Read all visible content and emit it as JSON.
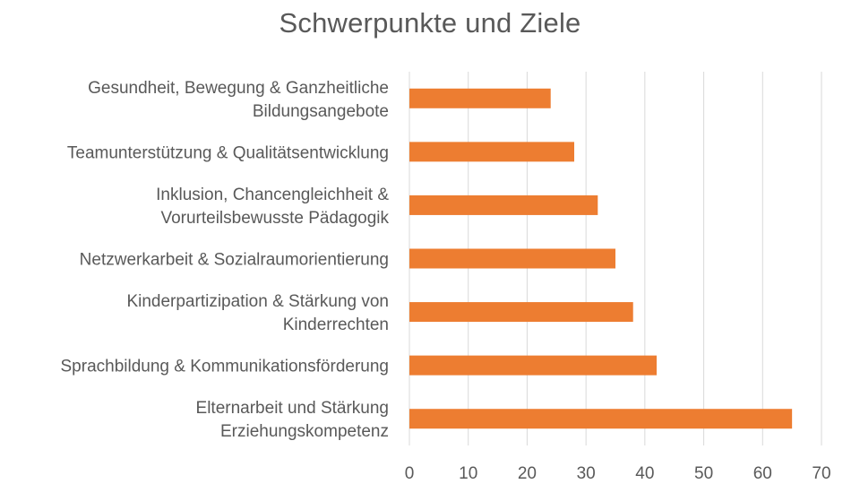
{
  "chart_data": {
    "type": "bar",
    "orientation": "horizontal",
    "title": "Schwerpunkte und Ziele",
    "categories": [
      [
        "Gesundheit, Bewegung & Ganzheitliche",
        "Bildungsangebote"
      ],
      [
        "Teamunterstützung & Qualitätsentwicklung"
      ],
      [
        "Inklusion, Chancengleichheit &",
        "Vorurteilsbewusste Pädagogik"
      ],
      [
        "Netzwerkarbeit & Sozialraumorientierung"
      ],
      [
        "Kinderpartizipation & Stärkung von",
        "Kinderrechten"
      ],
      [
        "Sprachbildung & Kommunikationsförderung"
      ],
      [
        "Elternarbeit und Stärkung",
        "Erziehungskompetenz"
      ]
    ],
    "values": [
      24,
      28,
      32,
      35,
      38,
      42,
      65
    ],
    "xlim": [
      0,
      70
    ],
    "xticks": [
      0,
      10,
      20,
      30,
      40,
      50,
      60,
      70
    ],
    "grid": true,
    "bar_color": "#ed7d31"
  }
}
